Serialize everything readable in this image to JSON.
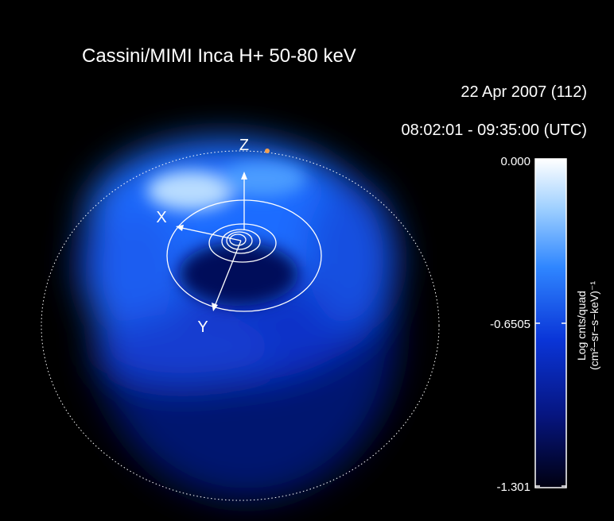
{
  "header": {
    "title": "Cassini/MIMI Inca  H+  50-80 keV",
    "date": "22 Apr 2007 (112)",
    "time_range": "08:02:01 - 09:35:00 (UTC)"
  },
  "image": {
    "axis_labels": {
      "x": "X",
      "y": "Y",
      "z": "Z"
    }
  },
  "colorbar": {
    "ticks": [
      {
        "value": 0,
        "label": "0.000"
      },
      -0.6505,
      -1.301
    ],
    "label": "Log cnts/quad",
    "units": "(cm²−sr−s−keV)⁻¹"
  }
}
